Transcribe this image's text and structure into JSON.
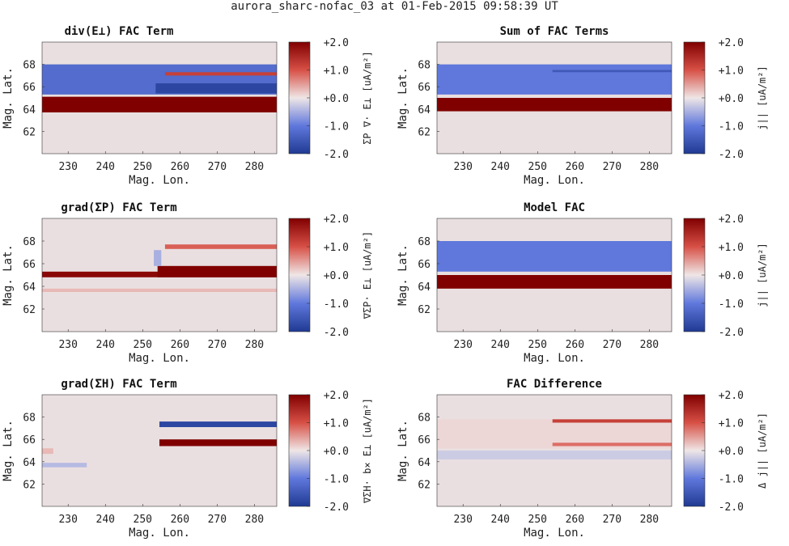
{
  "figure": {
    "title": "aurora_sharc-nofac_03 at 01-Feb-2015 09:58:39 UT"
  },
  "colors": {
    "cmap_low": "#1f3a93",
    "cmap_mid": "#efe6e6",
    "cmap_high": "#800000",
    "background_field": "#eadfe0"
  },
  "chart_data": [
    {
      "type": "heatmap",
      "title": "div(E⊥) FAC Term",
      "xlabel": "Mag. Lon.",
      "ylabel": "Mag. Lat.",
      "xlim": [
        223,
        286
      ],
      "ylim": [
        60,
        70
      ],
      "xticks": [
        230,
        240,
        250,
        260,
        270,
        280
      ],
      "yticks": [
        62,
        64,
        66,
        68
      ],
      "colorbar_label": "ΣP ∇· E⊥ [uA/m²]",
      "clim": [
        -2,
        2
      ],
      "cticks": [
        "-2.0",
        "-1.0",
        "+0.0",
        "+1.0",
        "+2.0"
      ],
      "bands": [
        {
          "lon": [
            223,
            286
          ],
          "lat": [
            63.7,
            65.1
          ],
          "value": 2.0
        },
        {
          "lon": [
            223,
            286
          ],
          "lat": [
            65.3,
            68.0
          ],
          "value": -1.2
        },
        {
          "lon": [
            253.5,
            286
          ],
          "lat": [
            65.4,
            66.3
          ],
          "value": -1.8
        },
        {
          "lon": [
            256,
            286
          ],
          "lat": [
            67.0,
            67.3
          ],
          "value": 1.2
        }
      ]
    },
    {
      "type": "heatmap",
      "title": "Sum of FAC Terms",
      "xlabel": "Mag. Lon.",
      "ylabel": "Mag. Lat.",
      "xlim": [
        223,
        286
      ],
      "ylim": [
        60,
        70
      ],
      "xticks": [
        230,
        240,
        250,
        260,
        270,
        280
      ],
      "yticks": [
        62,
        64,
        66,
        68
      ],
      "colorbar_label": "j|| [uA/m²]",
      "clim": [
        -2,
        2
      ],
      "cticks": [
        "-2.0",
        "-1.0",
        "+0.0",
        "+1.0",
        "+2.0"
      ],
      "bands": [
        {
          "lon": [
            223,
            286
          ],
          "lat": [
            63.8,
            65.0
          ],
          "value": 2.0
        },
        {
          "lon": [
            223,
            286
          ],
          "lat": [
            65.3,
            68.0
          ],
          "value": -1.0
        },
        {
          "lon": [
            254,
            286
          ],
          "lat": [
            67.3,
            67.5
          ],
          "value": -1.5
        }
      ]
    },
    {
      "type": "heatmap",
      "title": "grad(ΣP) FAC Term",
      "xlabel": "Mag. Lon.",
      "ylabel": "Mag. Lat.",
      "xlim": [
        223,
        286
      ],
      "ylim": [
        60,
        70
      ],
      "xticks": [
        230,
        240,
        250,
        260,
        270,
        280
      ],
      "yticks": [
        62,
        64,
        66,
        68
      ],
      "colorbar_label": "∇ΣP· E⊥ [uA/m²]",
      "clim": [
        -2,
        2
      ],
      "cticks": [
        "-2.0",
        "-1.0",
        "+0.0",
        "+1.0",
        "+2.0"
      ],
      "bands": [
        {
          "lon": [
            223,
            286
          ],
          "lat": [
            64.8,
            65.3
          ],
          "value": 1.9
        },
        {
          "lon": [
            254,
            286
          ],
          "lat": [
            64.8,
            65.8
          ],
          "value": 2.0
        },
        {
          "lon": [
            223,
            286
          ],
          "lat": [
            63.5,
            63.8
          ],
          "value": 0.3
        },
        {
          "lon": [
            256,
            286
          ],
          "lat": [
            67.3,
            67.7
          ],
          "value": 0.9
        },
        {
          "lon": [
            253,
            255
          ],
          "lat": [
            65.8,
            67.2
          ],
          "value": -0.5
        }
      ]
    },
    {
      "type": "heatmap",
      "title": "Model FAC",
      "xlabel": "Mag. Lon.",
      "ylabel": "Mag. Lat.",
      "xlim": [
        223,
        286
      ],
      "ylim": [
        60,
        70
      ],
      "xticks": [
        230,
        240,
        250,
        260,
        270,
        280
      ],
      "yticks": [
        62,
        64,
        66,
        68
      ],
      "colorbar_label": "j|| [uA/m²]",
      "clim": [
        -2,
        2
      ],
      "cticks": [
        "-2.0",
        "-1.0",
        "+0.0",
        "+1.0",
        "+2.0"
      ],
      "bands": [
        {
          "lon": [
            223,
            286
          ],
          "lat": [
            63.8,
            65.0
          ],
          "value": 2.0
        },
        {
          "lon": [
            223,
            286
          ],
          "lat": [
            65.3,
            68.0
          ],
          "value": -1.0
        }
      ]
    },
    {
      "type": "heatmap",
      "title": "grad(ΣH) FAC Term",
      "xlabel": "Mag. Lon.",
      "ylabel": "Mag. Lat.",
      "xlim": [
        223,
        286
      ],
      "ylim": [
        60,
        70
      ],
      "xticks": [
        230,
        240,
        250,
        260,
        270,
        280
      ],
      "yticks": [
        62,
        64,
        66,
        68
      ],
      "colorbar_label": "∇ΣH· b× E⊥ [uA/m²]",
      "clim": [
        -2,
        2
      ],
      "cticks": [
        "-2.0",
        "-1.0",
        "+0.0",
        "+1.0",
        "+2.0"
      ],
      "bands": [
        {
          "lon": [
            254.5,
            286
          ],
          "lat": [
            67.1,
            67.6
          ],
          "value": -1.8
        },
        {
          "lon": [
            254.5,
            286
          ],
          "lat": [
            65.4,
            66.0
          ],
          "value": 2.0
        },
        {
          "lon": [
            223,
            235
          ],
          "lat": [
            63.5,
            63.9
          ],
          "value": -0.4
        },
        {
          "lon": [
            223,
            226
          ],
          "lat": [
            64.7,
            65.2
          ],
          "value": 0.3
        }
      ]
    },
    {
      "type": "heatmap",
      "title": "FAC Difference",
      "xlabel": "Mag. Lon.",
      "ylabel": "Mag. Lat.",
      "xlim": [
        223,
        286
      ],
      "ylim": [
        60,
        70
      ],
      "xticks": [
        230,
        240,
        250,
        260,
        270,
        280
      ],
      "yticks": [
        62,
        64,
        66,
        68
      ],
      "colorbar_label": "Δ j|| [uA/m²]",
      "clim": [
        -2,
        2
      ],
      "cticks": [
        "-2.0",
        "-1.0",
        "+0.0",
        "+1.0",
        "+2.0"
      ],
      "bands": [
        {
          "lon": [
            223,
            286
          ],
          "lat": [
            64.2,
            65.0
          ],
          "value": -0.25
        },
        {
          "lon": [
            223,
            286
          ],
          "lat": [
            65.2,
            67.8
          ],
          "value": 0.1
        },
        {
          "lon": [
            254,
            286
          ],
          "lat": [
            67.5,
            67.8
          ],
          "value": 1.2
        },
        {
          "lon": [
            254,
            286
          ],
          "lat": [
            65.4,
            65.7
          ],
          "value": 0.8
        }
      ]
    }
  ]
}
